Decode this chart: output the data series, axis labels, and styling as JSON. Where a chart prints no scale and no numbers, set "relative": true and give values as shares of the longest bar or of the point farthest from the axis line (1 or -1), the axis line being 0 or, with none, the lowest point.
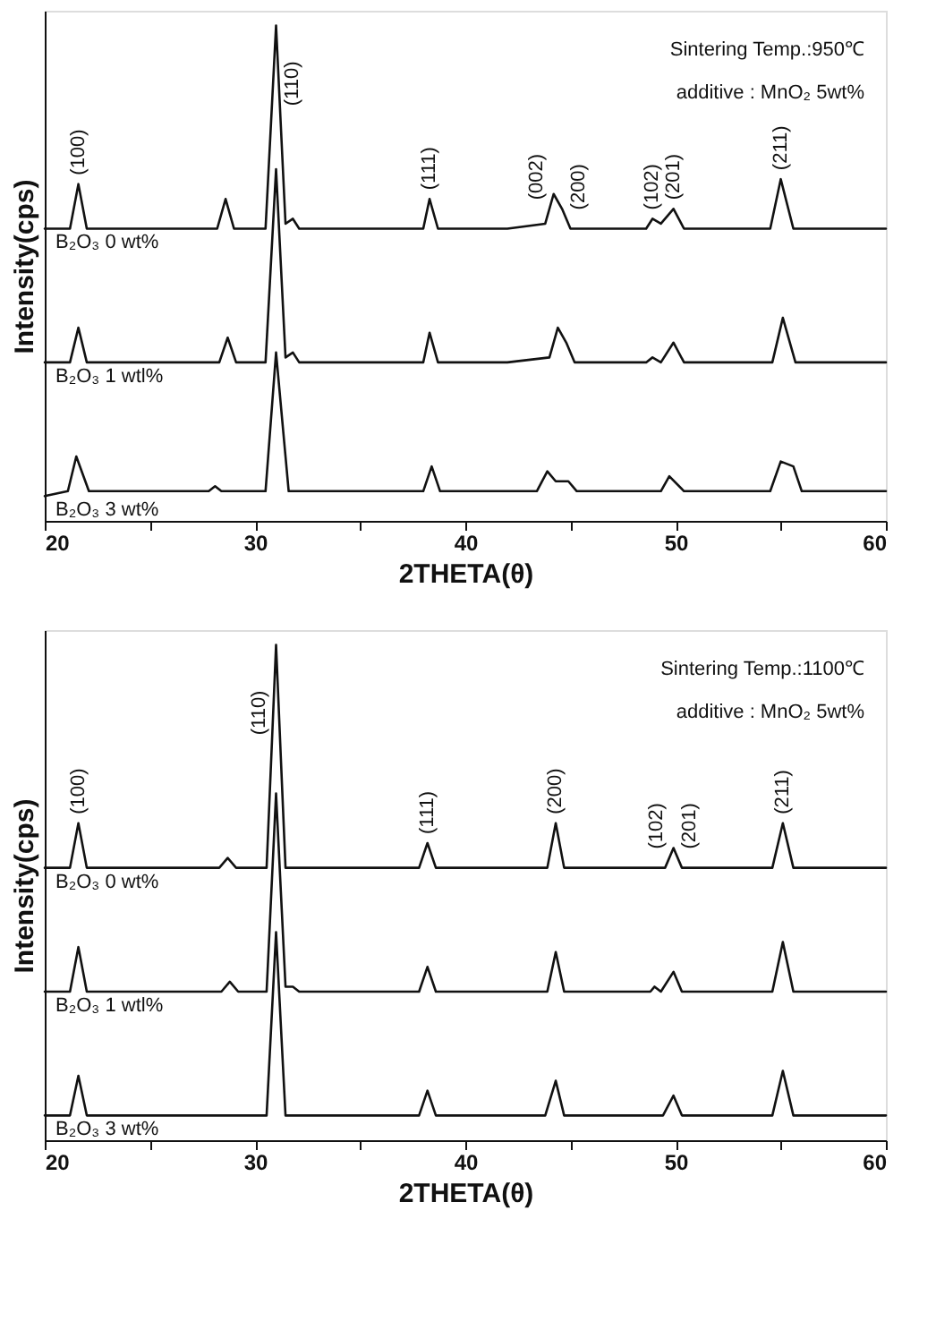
{
  "chart_data": [
    {
      "type": "line",
      "relative": true,
      "xlabel": "2THETA(θ)",
      "ylabel": "Intensity(cps)",
      "xlim": [
        20,
        60
      ],
      "xticks": [
        20,
        {
          "value": 25,
          "label": null
        },
        30,
        {
          "value": 35,
          "label": null
        },
        40,
        {
          "value": 45,
          "label": null
        },
        50,
        {
          "value": 55,
          "label": null
        },
        60
      ],
      "tick_labels": "x",
      "grid": false,
      "legend": false,
      "marker": "none",
      "line_style": "solid",
      "series": [
        {
          "name": "B₂O₃  0 wt%",
          "color": "#111111",
          "x": [
            20,
            21.2,
            21.6,
            22.0,
            25,
            28.2,
            28.6,
            29.0,
            30.5,
            31.0,
            31.45,
            31.8,
            32.1,
            35,
            38.0,
            38.3,
            38.7,
            42,
            43.8,
            44.2,
            44.6,
            45.0,
            48.6,
            48.9,
            49.3,
            49.9,
            50.4,
            54.5,
            55.0,
            55.6,
            60
          ],
          "values": [
            0.59,
            0.59,
            0.68,
            0.59,
            0.59,
            0.59,
            0.65,
            0.59,
            0.59,
            1.0,
            0.6,
            0.61,
            0.59,
            0.59,
            0.59,
            0.65,
            0.59,
            0.59,
            0.6,
            0.66,
            0.63,
            0.59,
            0.59,
            0.61,
            0.6,
            0.63,
            0.59,
            0.59,
            0.69,
            0.59,
            0.59
          ]
        },
        {
          "name": "B₂O₃  1 wtl%",
          "color": "#111111",
          "x": [
            20,
            21.2,
            21.6,
            22.0,
            25,
            28.3,
            28.7,
            29.1,
            30.5,
            31.0,
            31.45,
            31.8,
            32.1,
            35,
            38.0,
            38.3,
            38.7,
            42,
            44.0,
            44.4,
            44.8,
            45.2,
            48.6,
            48.9,
            49.3,
            49.9,
            50.4,
            54.6,
            55.1,
            55.7,
            60
          ],
          "values": [
            0.32,
            0.32,
            0.39,
            0.32,
            0.32,
            0.32,
            0.37,
            0.32,
            0.32,
            0.71,
            0.33,
            0.34,
            0.32,
            0.32,
            0.32,
            0.38,
            0.32,
            0.32,
            0.33,
            0.39,
            0.36,
            0.32,
            0.32,
            0.33,
            0.32,
            0.36,
            0.32,
            0.32,
            0.41,
            0.32,
            0.32
          ]
        },
        {
          "name": "B₂O₃  3 wt%",
          "color": "#111111",
          "x": [
            20,
            21.1,
            21.5,
            22.1,
            27.8,
            28.1,
            28.4,
            30.5,
            31.0,
            31.6,
            35,
            38.0,
            38.4,
            38.8,
            43.4,
            43.9,
            44.3,
            44.9,
            45.3,
            49.3,
            49.7,
            50.4,
            54.5,
            55.0,
            55.6,
            56.0,
            60
          ],
          "values": [
            0.05,
            0.06,
            0.13,
            0.06,
            0.06,
            0.07,
            0.06,
            0.06,
            0.34,
            0.06,
            0.06,
            0.06,
            0.11,
            0.06,
            0.06,
            0.1,
            0.08,
            0.08,
            0.06,
            0.06,
            0.09,
            0.06,
            0.06,
            0.12,
            0.11,
            0.06,
            0.06
          ]
        }
      ],
      "annotations": [
        "Sintering Temp.:950℃",
        "additive : MnO₂  5wt%",
        {
          "text": "(100)",
          "x": 21.6,
          "y": 0.68
        },
        {
          "text": "(110)",
          "x": 31.2,
          "y": 0.82
        },
        {
          "text": "(111)",
          "x": 38.3,
          "y": 0.65
        },
        {
          "text": "(002)",
          "x": 44.0,
          "y": 0.63
        },
        {
          "text": "(200)",
          "x": 44.8,
          "y": 0.61
        },
        {
          "text": "(102)",
          "x": 48.9,
          "y": 0.61
        },
        {
          "text": "(201)",
          "x": 49.9,
          "y": 0.63
        },
        {
          "text": "(211)",
          "x": 55.0,
          "y": 0.69
        }
      ]
    },
    {
      "type": "line",
      "relative": true,
      "xlabel": "2THETA(θ)",
      "ylabel": "Intensity(cps)",
      "xlim": [
        20,
        60
      ],
      "xticks": [
        20,
        {
          "value": 25,
          "label": null
        },
        30,
        {
          "value": 35,
          "label": null
        },
        40,
        {
          "value": 45,
          "label": null
        },
        50,
        {
          "value": 55,
          "label": null
        },
        60
      ],
      "tick_labels": "x",
      "grid": false,
      "legend": false,
      "marker": "none",
      "line_style": "solid",
      "series": [
        {
          "name": "B₂O₃  0 wt%",
          "color": "#111111",
          "x": [
            20,
            21.2,
            21.6,
            22.0,
            28.3,
            28.7,
            29.1,
            30.55,
            31.0,
            31.45,
            37.8,
            38.2,
            38.6,
            43.9,
            44.3,
            44.7,
            49.5,
            49.9,
            50.3,
            54.6,
            55.1,
            55.6,
            60
          ],
          "values": [
            0.55,
            0.55,
            0.64,
            0.55,
            0.55,
            0.57,
            0.55,
            0.55,
            1.0,
            0.55,
            0.55,
            0.6,
            0.55,
            0.55,
            0.64,
            0.55,
            0.55,
            0.59,
            0.55,
            0.55,
            0.64,
            0.55,
            0.55
          ]
        },
        {
          "name": "B₂O₃  1 wtl%",
          "color": "#111111",
          "x": [
            20,
            21.2,
            21.6,
            22.0,
            28.4,
            28.8,
            29.2,
            30.55,
            31.0,
            31.45,
            31.8,
            32.1,
            37.8,
            38.2,
            38.6,
            43.9,
            44.3,
            44.7,
            48.8,
            49.0,
            49.3,
            49.9,
            50.3,
            54.6,
            55.1,
            55.6,
            60
          ],
          "values": [
            0.3,
            0.3,
            0.39,
            0.3,
            0.3,
            0.32,
            0.3,
            0.3,
            0.7,
            0.31,
            0.31,
            0.3,
            0.3,
            0.35,
            0.3,
            0.3,
            0.38,
            0.3,
            0.3,
            0.31,
            0.3,
            0.34,
            0.3,
            0.3,
            0.4,
            0.3,
            0.3
          ]
        },
        {
          "name": "B₂O₃  3 wt%",
          "color": "#111111",
          "x": [
            20,
            21.2,
            21.6,
            22.0,
            30.55,
            31.0,
            31.45,
            37.8,
            38.2,
            38.6,
            43.8,
            44.3,
            44.7,
            49.4,
            49.9,
            50.3,
            54.6,
            55.1,
            55.6,
            60
          ],
          "values": [
            0.05,
            0.05,
            0.13,
            0.05,
            0.05,
            0.42,
            0.05,
            0.05,
            0.1,
            0.05,
            0.05,
            0.12,
            0.05,
            0.05,
            0.09,
            0.05,
            0.05,
            0.14,
            0.05,
            0.05
          ]
        }
      ],
      "annotations": [
        "Sintering Temp.:1100℃",
        "additive : MnO₂  5wt%",
        {
          "text": "(100)",
          "x": 21.6,
          "y": 0.64
        },
        {
          "text": "(110)",
          "x": 30.8,
          "y": 0.8
        },
        {
          "text": "(111)",
          "x": 38.2,
          "y": 0.6
        },
        {
          "text": "(200)",
          "x": 44.3,
          "y": 0.64
        },
        {
          "text": "(102)",
          "x": 49.7,
          "y": 0.57
        },
        {
          "text": "(201)",
          "x": 50.1,
          "y": 0.57
        },
        {
          "text": "(211)",
          "x": 55.1,
          "y": 0.64
        }
      ]
    }
  ]
}
